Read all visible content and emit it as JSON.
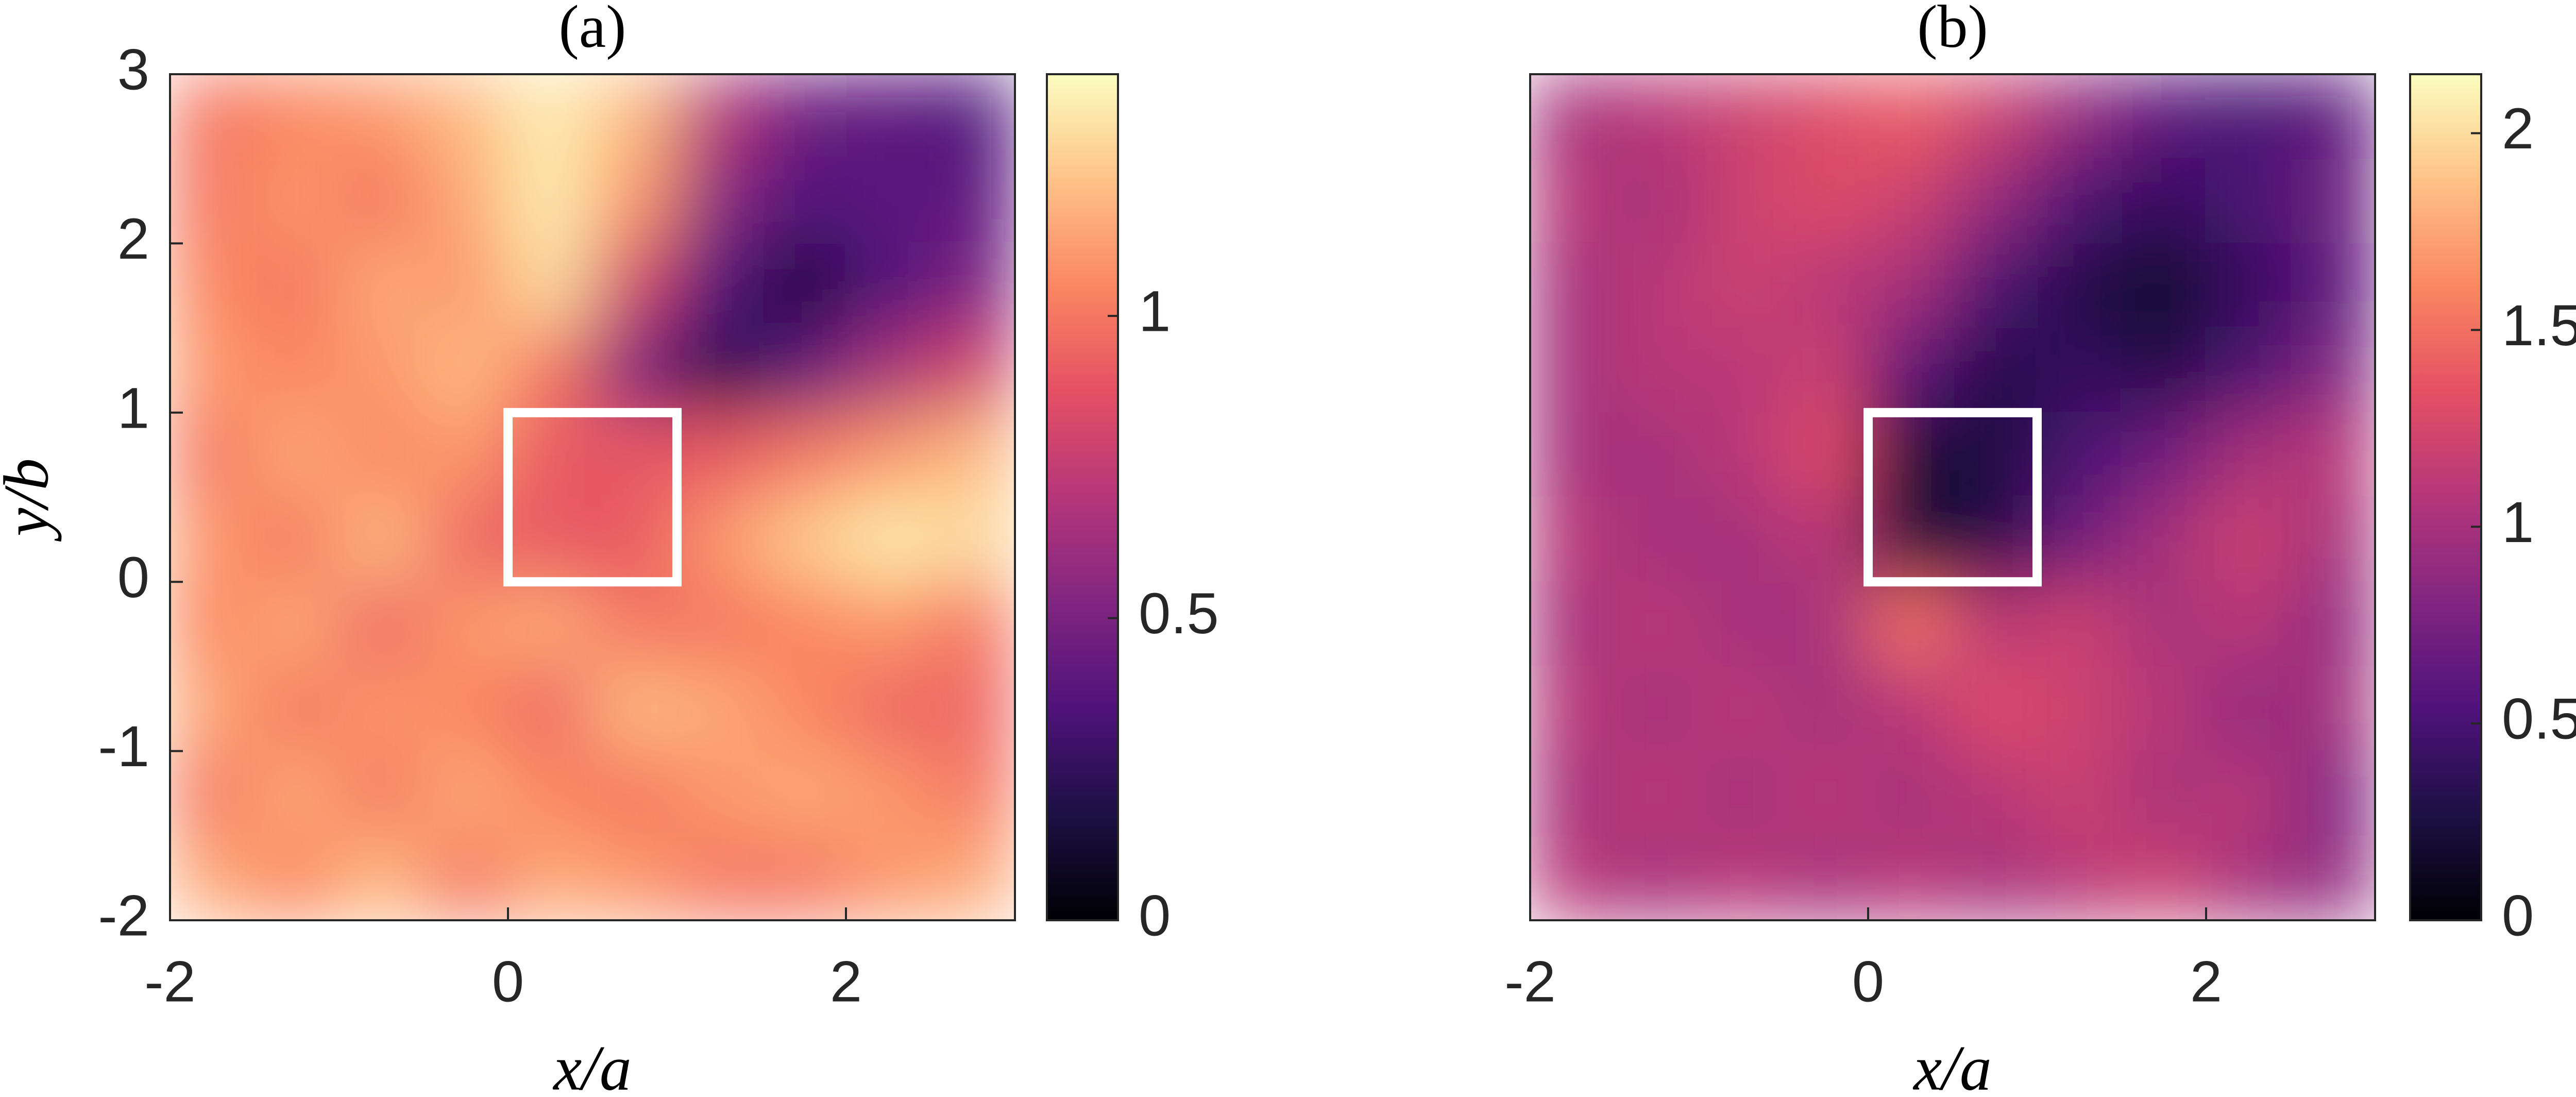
{
  "chart_data": [
    {
      "type": "heatmap",
      "title": "(a)",
      "x_label": "x/a",
      "y_label": "y/b",
      "xlim": [
        -2,
        3
      ],
      "ylim": [
        -2,
        3
      ],
      "xticks": [
        -2,
        0,
        2
      ],
      "yticks": [
        -2,
        -1,
        0,
        1,
        2,
        3
      ],
      "x_centers": [
        -1.75,
        -1.25,
        -0.75,
        -0.25,
        0.25,
        0.75,
        1.25,
        1.75,
        2.25,
        2.75
      ],
      "y_centers": [
        2.75,
        2.25,
        1.75,
        1.25,
        0.75,
        0.25,
        -0.25,
        -0.75,
        -1.25,
        -1.75
      ],
      "z": [
        [
          1.0,
          1.05,
          1.1,
          1.2,
          1.35,
          1.2,
          0.7,
          0.45,
          0.4,
          0.35
        ],
        [
          1.0,
          1.1,
          1.0,
          1.15,
          1.35,
          1.1,
          0.55,
          0.35,
          0.4,
          0.4
        ],
        [
          1.05,
          1.0,
          1.15,
          1.1,
          1.3,
          0.8,
          0.35,
          0.15,
          0.35,
          0.5
        ],
        [
          1.1,
          1.05,
          1.1,
          1.2,
          1.0,
          0.5,
          0.2,
          0.4,
          0.65,
          0.8
        ],
        [
          1.0,
          1.15,
          1.05,
          1.1,
          0.9,
          0.9,
          0.9,
          1.0,
          1.1,
          1.2
        ],
        [
          1.1,
          1.0,
          1.2,
          0.95,
          0.9,
          0.9,
          1.1,
          1.25,
          1.35,
          1.3
        ],
        [
          1.05,
          1.15,
          0.95,
          1.1,
          1.15,
          1.0,
          1.0,
          1.05,
          1.1,
          1.0
        ],
        [
          1.15,
          1.0,
          1.1,
          1.05,
          0.95,
          1.2,
          1.15,
          1.05,
          0.95,
          0.95
        ],
        [
          1.0,
          1.15,
          1.0,
          1.15,
          1.05,
          1.0,
          1.1,
          1.15,
          1.1,
          1.0
        ],
        [
          1.15,
          1.05,
          1.2,
          1.0,
          1.15,
          1.1,
          1.0,
          1.0,
          1.1,
          1.15
        ]
      ],
      "colormap": "magma",
      "clim": [
        0,
        1.4
      ],
      "cticks": [
        0,
        0.5,
        1
      ],
      "box_x": [
        0,
        1
      ],
      "box_y": [
        0,
        1
      ]
    },
    {
      "type": "heatmap",
      "title": "(b)",
      "x_label": "x/a",
      "xlim": [
        -2,
        3
      ],
      "ylim": [
        -2,
        3
      ],
      "xticks": [
        -2,
        0,
        2
      ],
      "x_centers": [
        -1.75,
        -1.25,
        -0.75,
        -0.25,
        0.25,
        0.75,
        1.25,
        1.75,
        2.25,
        2.75
      ],
      "y_centers": [
        2.75,
        2.25,
        1.75,
        1.25,
        0.75,
        0.25,
        -0.25,
        -0.75,
        -1.25,
        -1.75
      ],
      "z": [
        [
          1.0,
          1.1,
          1.2,
          1.3,
          1.4,
          1.2,
          0.9,
          0.6,
          0.5,
          0.6
        ],
        [
          1.1,
          1.0,
          1.2,
          1.3,
          1.2,
          0.9,
          0.5,
          0.4,
          0.5,
          0.7
        ],
        [
          1.0,
          1.1,
          1.2,
          1.1,
          1.0,
          0.5,
          0.3,
          0.15,
          0.4,
          0.6
        ],
        [
          1.0,
          1.1,
          1.1,
          1.2,
          0.6,
          0.3,
          0.4,
          0.3,
          0.5,
          0.8
        ],
        [
          1.0,
          1.0,
          1.1,
          1.3,
          0.2,
          0.25,
          0.5,
          0.7,
          1.0,
          1.1
        ],
        [
          1.1,
          1.0,
          1.0,
          1.1,
          0.2,
          0.3,
          0.7,
          1.0,
          1.2,
          1.0
        ],
        [
          1.0,
          1.1,
          1.0,
          1.0,
          1.5,
          1.1,
          1.2,
          1.0,
          1.1,
          0.9
        ],
        [
          1.1,
          1.0,
          1.1,
          1.0,
          1.1,
          1.3,
          1.2,
          1.1,
          0.9,
          1.0
        ],
        [
          1.0,
          1.1,
          1.0,
          1.1,
          1.0,
          1.1,
          1.2,
          1.0,
          1.1,
          0.8
        ],
        [
          1.1,
          1.0,
          1.1,
          1.0,
          1.1,
          1.0,
          1.1,
          1.2,
          1.0,
          0.9
        ]
      ],
      "colormap": "magma",
      "clim": [
        0,
        2.15
      ],
      "cticks": [
        0,
        0.5,
        1,
        1.5,
        2
      ],
      "box_x": [
        0,
        1
      ],
      "box_y": [
        0,
        1
      ]
    }
  ]
}
